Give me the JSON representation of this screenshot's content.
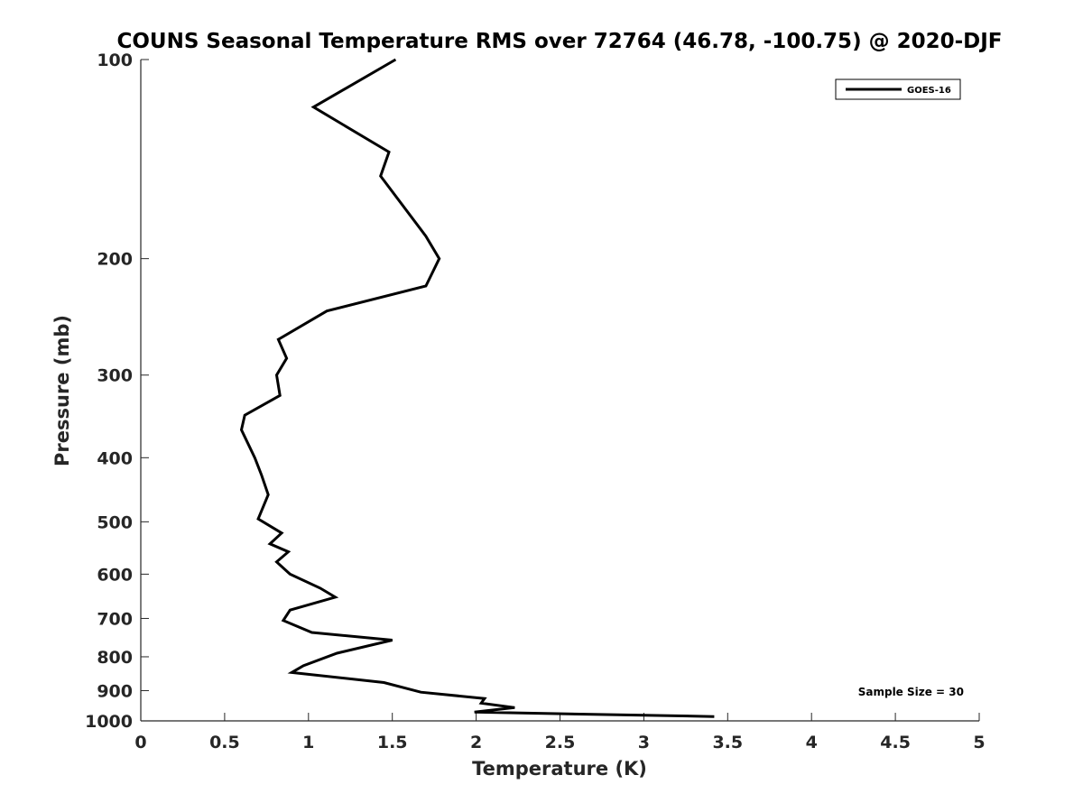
{
  "chart_data": {
    "type": "line",
    "title": "COUNS Seasonal Temperature RMS over 72764 (46.78, -100.75) @ 2020-DJF",
    "xlabel": "Temperature (K)",
    "ylabel": "Pressure (mb)",
    "xlim": [
      0,
      5
    ],
    "ylim": [
      100,
      1000
    ],
    "yscale": "log",
    "y_reversed": true,
    "grid": false,
    "legend_position": "top-right",
    "xticks": [
      0,
      0.5,
      1,
      1.5,
      2,
      2.5,
      3,
      3.5,
      4,
      4.5,
      5
    ],
    "xtick_labels": [
      "0",
      "0.5",
      "1",
      "1.5",
      "2",
      "2.5",
      "3",
      "3.5",
      "4",
      "4.5",
      "5"
    ],
    "yticks": [
      100,
      200,
      300,
      400,
      500,
      600,
      700,
      800,
      900,
      1000
    ],
    "ytick_labels": [
      "100",
      "200",
      "300",
      "400",
      "500",
      "600",
      "700",
      "800",
      "900",
      "1000"
    ],
    "annotation": "Sample Size = 30",
    "series": [
      {
        "name": "GOES-16",
        "color": "#000000",
        "x": [
          1.52,
          1.03,
          1.48,
          1.43,
          1.7,
          1.78,
          1.7,
          1.11,
          0.82,
          0.87,
          0.81,
          0.83,
          0.62,
          0.6,
          0.68,
          0.72,
          0.76,
          0.7,
          0.84,
          0.77,
          0.88,
          0.81,
          0.89,
          1.07,
          1.16,
          0.89,
          0.85,
          1.02,
          1.5,
          1.17,
          0.97,
          0.9,
          1.45,
          1.67,
          2.05,
          2.03,
          2.23,
          1.99,
          3.42
        ],
        "y": [
          100,
          118,
          138,
          150,
          185,
          200,
          220,
          240,
          265,
          283,
          300,
          322,
          345,
          363,
          400,
          425,
          455,
          495,
          520,
          540,
          555,
          575,
          600,
          630,
          650,
          680,
          705,
          735,
          755,
          790,
          825,
          845,
          875,
          905,
          925,
          940,
          955,
          970,
          985
        ]
      }
    ]
  }
}
